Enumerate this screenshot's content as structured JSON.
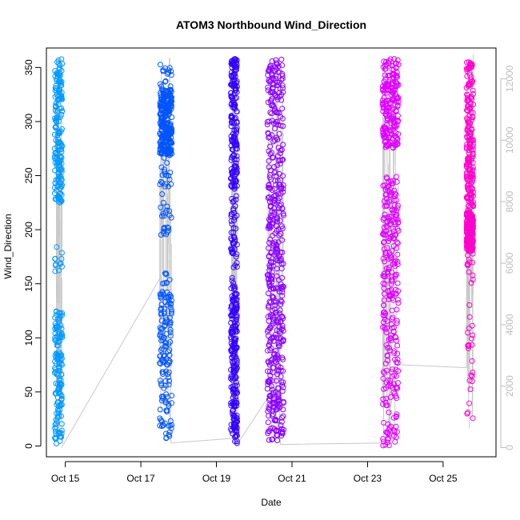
{
  "chart_data": {
    "type": "scatter",
    "title": "ATOM3 Northbound Wind_Direction",
    "xlabel": "Date",
    "ylabel": "Wind_Direction",
    "x_unit": "days",
    "xlim": [
      14.5,
      26.4
    ],
    "ylim": [
      -10,
      368
    ],
    "x_ticks": [
      {
        "value": 15,
        "label": "Oct 15"
      },
      {
        "value": 17,
        "label": "Oct 17"
      },
      {
        "value": 19,
        "label": "Oct 19"
      },
      {
        "value": 21,
        "label": "Oct 21"
      },
      {
        "value": 23,
        "label": "Oct 23"
      },
      {
        "value": 25,
        "label": "Oct 25"
      }
    ],
    "y_ticks": [
      0,
      50,
      100,
      150,
      200,
      250,
      300,
      350
    ],
    "y2": {
      "ticks": [
        0,
        2000,
        4000,
        6000,
        8000,
        10000,
        12000
      ],
      "lim": [
        -300,
        13000
      ],
      "color": "#bdbdbd"
    },
    "grid": false,
    "series": [
      {
        "color": "#0099ff",
        "x_range": [
          14.72,
          14.92
        ],
        "segments": [
          {
            "y_min": 225,
            "y_max": 358,
            "n": 180
          },
          {
            "y_min": 2,
            "y_max": 128,
            "n": 150
          },
          {
            "y_min": 160,
            "y_max": 185,
            "n": 12
          }
        ]
      },
      {
        "color": "#0055ff",
        "x_range": [
          17.5,
          17.82
        ],
        "segments": [
          {
            "y_min": 270,
            "y_max": 330,
            "n": 230
          },
          {
            "y_min": 195,
            "y_max": 355,
            "n": 90
          },
          {
            "y_min": 5,
            "y_max": 160,
            "n": 150
          }
        ]
      },
      {
        "color": "#3300ff",
        "x_range": [
          19.38,
          19.55
        ],
        "segments": [
          {
            "y_min": 240,
            "y_max": 358,
            "n": 170
          },
          {
            "y_min": 2,
            "y_max": 140,
            "n": 200
          },
          {
            "y_min": 140,
            "y_max": 240,
            "n": 60
          }
        ]
      },
      {
        "color": "#8800ff",
        "x_range": [
          20.35,
          20.78
        ],
        "segments": [
          {
            "y_min": 180,
            "y_max": 358,
            "n": 230
          },
          {
            "y_min": 5,
            "y_max": 180,
            "n": 260
          }
        ]
      },
      {
        "color": "#dd00ff",
        "x_range": [
          23.4,
          23.82
        ],
        "segments": [
          {
            "y_min": 275,
            "y_max": 358,
            "n": 200
          },
          {
            "y_min": 150,
            "y_max": 250,
            "n": 140
          },
          {
            "y_min": 0,
            "y_max": 150,
            "n": 140
          }
        ]
      },
      {
        "color": "#ff00cc",
        "x_range": [
          25.62,
          25.8
        ],
        "segments": [
          {
            "y_min": 180,
            "y_max": 215,
            "n": 200
          },
          {
            "y_min": 215,
            "y_max": 355,
            "n": 200
          },
          {
            "y_min": 14,
            "y_max": 180,
            "n": 35
          }
        ]
      }
    ],
    "overlay_line": {
      "axis": "y2",
      "color": "#c8c8c8",
      "points": [
        [
          14.9,
          0
        ],
        [
          17.55,
          5600
        ],
        [
          17.8,
          150
        ],
        [
          19.45,
          300
        ],
        [
          19.55,
          100
        ],
        [
          20.5,
          1900
        ],
        [
          20.7,
          100
        ],
        [
          23.45,
          150
        ],
        [
          23.8,
          2700
        ],
        [
          25.62,
          2600
        ],
        [
          25.8,
          12800
        ]
      ]
    }
  }
}
